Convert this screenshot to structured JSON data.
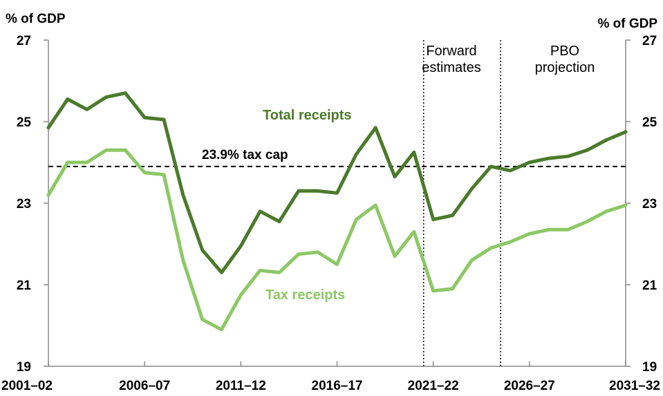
{
  "chart_data": {
    "type": "line",
    "y_axis_unit_left": "% of GDP",
    "y_axis_unit_right": "% of GDP",
    "ylim": [
      19,
      27
    ],
    "y_ticks": [
      19,
      21,
      23,
      25,
      27
    ],
    "x_tick_labels": [
      "2001–02",
      "2006–07",
      "2011–12",
      "2016–17",
      "2021–22",
      "2026–27",
      "2031–32"
    ],
    "x_tick_years": [
      2001,
      2006,
      2011,
      2016,
      2021,
      2026,
      2031
    ],
    "grid": false,
    "series": [
      {
        "name": "Total receipts",
        "color": "#4b7a2b",
        "x": [
          2001,
          2002,
          2003,
          2004,
          2005,
          2006,
          2007,
          2008,
          2009,
          2010,
          2011,
          2012,
          2013,
          2014,
          2015,
          2016,
          2017,
          2018,
          2019,
          2020,
          2021,
          2022,
          2023,
          2024,
          2025,
          2026,
          2027,
          2028,
          2029,
          2030,
          2031
        ],
        "values": [
          24.85,
          25.55,
          25.3,
          25.6,
          25.7,
          25.1,
          25.05,
          23.2,
          21.85,
          21.3,
          21.95,
          22.8,
          22.55,
          23.3,
          23.3,
          23.25,
          24.2,
          24.85,
          23.65,
          24.25,
          22.6,
          22.7,
          23.35,
          23.9,
          23.8,
          24.0,
          24.1,
          24.15,
          24.3,
          24.55,
          24.75
        ]
      },
      {
        "name": "Tax receipts",
        "color": "#8cc865",
        "x": [
          2001,
          2002,
          2003,
          2004,
          2005,
          2006,
          2007,
          2008,
          2009,
          2010,
          2011,
          2012,
          2013,
          2014,
          2015,
          2016,
          2017,
          2018,
          2019,
          2020,
          2021,
          2022,
          2023,
          2024,
          2025,
          2026,
          2027,
          2028,
          2029,
          2030,
          2031
        ],
        "values": [
          23.2,
          24.0,
          24.0,
          24.3,
          24.3,
          23.75,
          23.7,
          21.6,
          20.15,
          19.9,
          20.75,
          21.35,
          21.3,
          21.75,
          21.8,
          21.5,
          22.6,
          22.95,
          21.7,
          22.3,
          20.85,
          20.9,
          21.6,
          21.9,
          22.05,
          22.25,
          22.35,
          22.35,
          22.55,
          22.8,
          22.95
        ]
      }
    ],
    "reference_line": {
      "label": "23.9% tax cap",
      "value": 23.9
    },
    "period_markers": [
      {
        "x": 2020.5,
        "label_lines": [
          "Forward",
          "estimates"
        ]
      },
      {
        "x": 2024.5,
        "label_lines": [
          "PBO",
          "projection"
        ]
      }
    ]
  }
}
